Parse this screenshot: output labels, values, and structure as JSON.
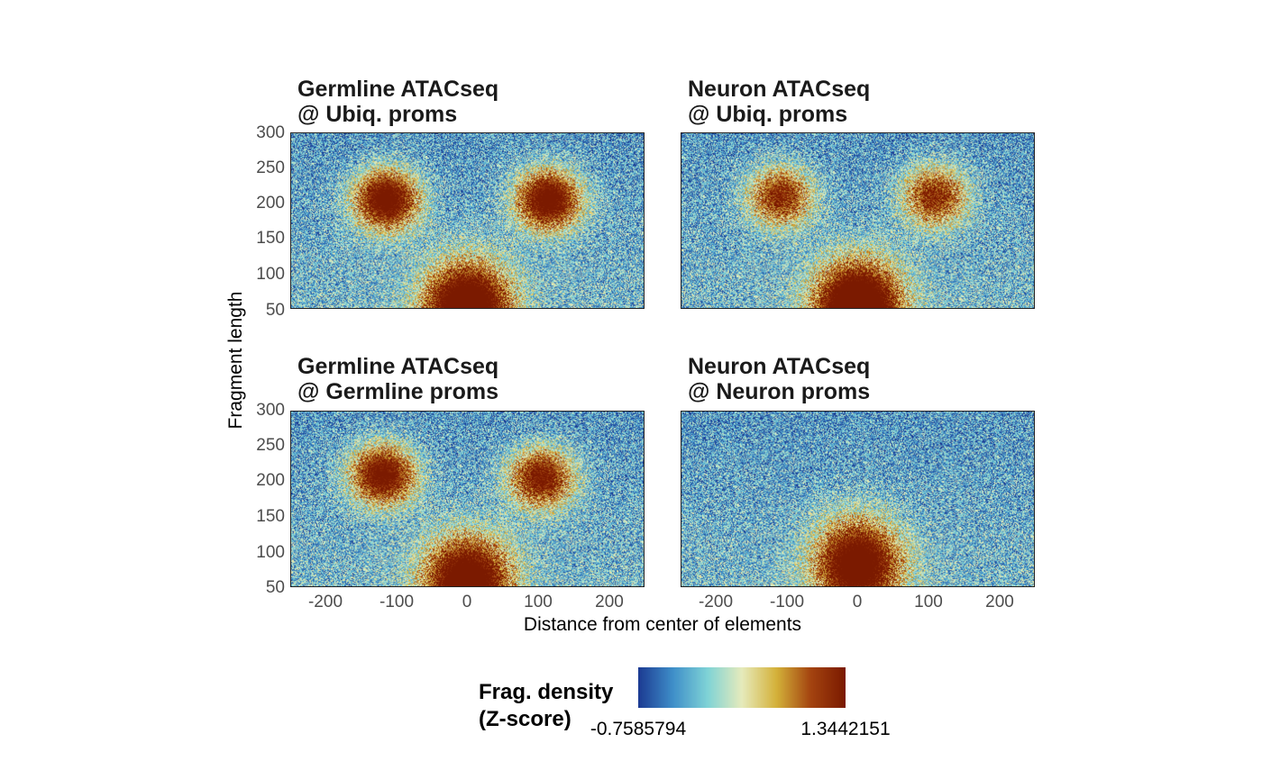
{
  "chart_data": {
    "type": "heatmap",
    "xlabel": "Distance from center of elements",
    "ylabel": "Fragment length",
    "xlim": [
      -250,
      250
    ],
    "ylim": [
      50,
      300
    ],
    "xticks": [
      -200,
      -100,
      0,
      100,
      200
    ],
    "yticks": [
      50,
      100,
      150,
      200,
      250,
      300
    ],
    "colorbar": {
      "title_line1": "Frag. density",
      "title_line2": "(Z-score)",
      "min": "-0.7585794",
      "max": "1.3442151",
      "colors": [
        "#1c3b93",
        "#3f8fc9",
        "#7fd3d6",
        "#e6ebbc",
        "#d4b23a",
        "#a44410",
        "#7b1a00"
      ]
    },
    "panels": [
      {
        "title_line1": "Germline ATACseq",
        "title_line2": "@ Ubiq. proms",
        "features": [
          {
            "x": -115,
            "y": 205,
            "amp": 1.9
          },
          {
            "x": 115,
            "y": 205,
            "amp": 1.9
          },
          {
            "x": 0,
            "y": 50,
            "amp": 2.2
          }
        ]
      },
      {
        "title_line1": "Neuron ATACseq",
        "title_line2": "@ Ubiq. proms",
        "features": [
          {
            "x": -110,
            "y": 210,
            "amp": 1.4
          },
          {
            "x": 110,
            "y": 210,
            "amp": 1.4
          },
          {
            "x": 0,
            "y": 50,
            "amp": 2.4
          }
        ]
      },
      {
        "title_line1": "Germline ATACseq",
        "title_line2": "@ Germline proms",
        "features": [
          {
            "x": -120,
            "y": 210,
            "amp": 1.8
          },
          {
            "x": 105,
            "y": 205,
            "amp": 1.6
          },
          {
            "x": 0,
            "y": 55,
            "amp": 2.1
          }
        ]
      },
      {
        "title_line1": "Neuron ATACseq",
        "title_line2": "@ Neuron proms",
        "features": [
          {
            "x": 0,
            "y": 80,
            "amp": 2.0
          }
        ]
      }
    ]
  }
}
